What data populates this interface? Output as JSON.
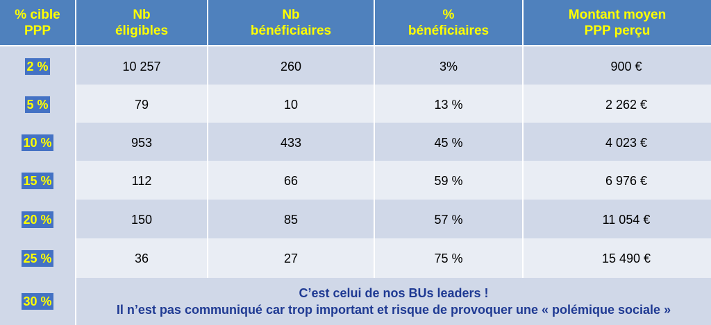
{
  "header": {
    "col0": [
      "% cible",
      "PPP"
    ],
    "col1": [
      "Nb",
      "éligibles"
    ],
    "col2": [
      "Nb",
      "bénéficiaires"
    ],
    "col3": [
      "%",
      "bénéficiaires"
    ],
    "col4": [
      "Montant moyen",
      "PPP perçu"
    ]
  },
  "rows": [
    {
      "target": "2 %",
      "eligibles": "10 257",
      "beneficiaires": "260",
      "pct": "3%",
      "montant": "900 €"
    },
    {
      "target": "5 %",
      "eligibles": "79",
      "beneficiaires": "10",
      "pct": "13 %",
      "montant": "2 262 €"
    },
    {
      "target": "10 %",
      "eligibles": "953",
      "beneficiaires": "433",
      "pct": "45 %",
      "montant": "4 023 €"
    },
    {
      "target": "15 %",
      "eligibles": "112",
      "beneficiaires": "66",
      "pct": "59 %",
      "montant": "6 976 €"
    },
    {
      "target": "20 %",
      "eligibles": "150",
      "beneficiaires": "85",
      "pct": "57 %",
      "montant": "11 054 €"
    },
    {
      "target": "25 %",
      "eligibles": "36",
      "beneficiaires": "27",
      "pct": "75 %",
      "montant": "15 490 €"
    }
  ],
  "last_row": {
    "target": "30 %",
    "line1": "C’est celui de nos BUs leaders !",
    "line2": "Il n’est pas communiqué car trop important et risque de provoquer une « polémique sociale »"
  },
  "colors": {
    "header_bg": "#4f81bd",
    "header_text": "#ffff00",
    "band_dark": "#d0d8e8",
    "band_light": "#e9edf4",
    "tag_bg": "#4472c4",
    "note_text": "#1f3a93"
  }
}
